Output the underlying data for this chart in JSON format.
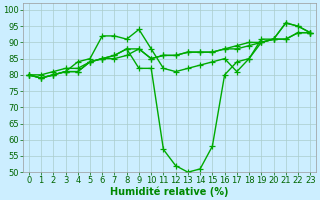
{
  "background_color": "#cceeff",
  "grid_color": "#aacccc",
  "line_color": "#00aa00",
  "marker": "+",
  "markersize": 4,
  "linewidth": 1.0,
  "xlabel": "Humidité relative (%)",
  "xlabel_fontsize": 7,
  "xlabel_color": "#008800",
  "tick_fontsize": 6,
  "tick_color": "#006600",
  "ylim": [
    50,
    102
  ],
  "xlim": [
    -0.5,
    23.5
  ],
  "yticks": [
    50,
    55,
    60,
    65,
    70,
    75,
    80,
    85,
    90,
    95,
    100
  ],
  "xticks": [
    0,
    1,
    2,
    3,
    4,
    5,
    6,
    7,
    8,
    9,
    10,
    11,
    12,
    13,
    14,
    15,
    16,
    17,
    18,
    19,
    20,
    21,
    22,
    23
  ],
  "series": [
    [
      80,
      79,
      80,
      81,
      81,
      84,
      85,
      85,
      86,
      88,
      85,
      86,
      86,
      87,
      87,
      87,
      88,
      88,
      89,
      90,
      91,
      91,
      93,
      93
    ],
    [
      80,
      80,
      81,
      82,
      82,
      84,
      85,
      86,
      88,
      88,
      85,
      86,
      86,
      87,
      87,
      87,
      88,
      89,
      90,
      90,
      91,
      91,
      93,
      93
    ],
    [
      80,
      79,
      80,
      81,
      84,
      85,
      92,
      92,
      91,
      94,
      88,
      82,
      81,
      82,
      83,
      84,
      85,
      81,
      85,
      91,
      91,
      96,
      95,
      93
    ],
    [
      80,
      79,
      80,
      81,
      81,
      84,
      85,
      86,
      88,
      82,
      82,
      57,
      52,
      50,
      51,
      58,
      80,
      84,
      85,
      90,
      91,
      96,
      95,
      93
    ]
  ]
}
